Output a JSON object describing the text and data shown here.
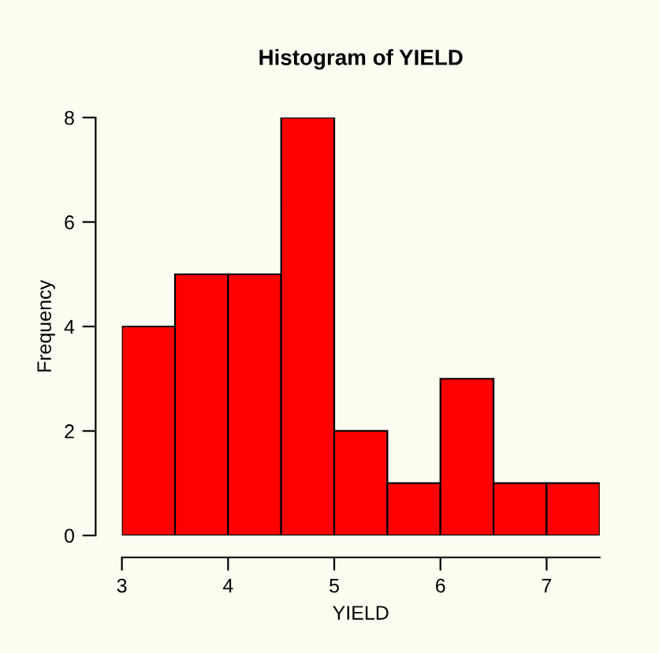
{
  "chart_data": {
    "type": "histogram",
    "title": "Histogram of YIELD",
    "xlabel": "YIELD",
    "ylabel": "Frequency",
    "bins": [
      3,
      3.5,
      4,
      4.5,
      5,
      5.5,
      6,
      6.5,
      7,
      7.5
    ],
    "values": [
      4,
      5,
      5,
      8,
      2,
      1,
      3,
      1,
      1
    ],
    "color": "#ff0000",
    "xlim": [
      3,
      7.5
    ],
    "ylim": [
      0,
      8
    ],
    "xticks": [
      3,
      4,
      5,
      6,
      7
    ],
    "yticks": [
      0,
      2,
      4,
      6,
      8
    ],
    "grid": false
  }
}
